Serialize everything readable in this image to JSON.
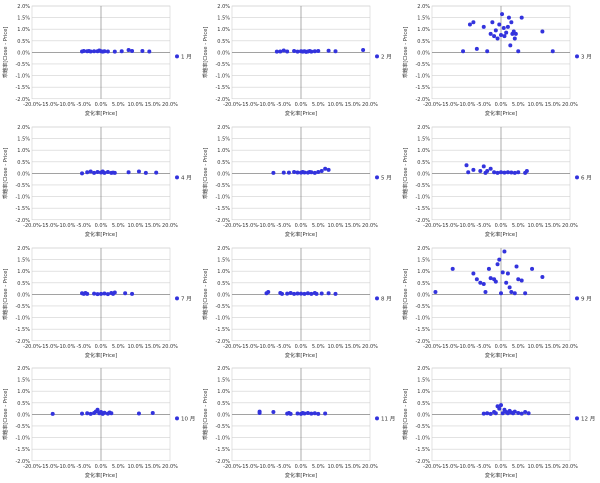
{
  "chart_data": [
    {
      "type": "scatter",
      "legend": "1 月",
      "xlabel": "変化率[Price]",
      "ylabel": "乖離率[Close - Price]",
      "xlim": [
        -20,
        20
      ],
      "ylim": [
        -2,
        2
      ],
      "points": [
        [
          -5.5,
          0.04
        ],
        [
          -5,
          0.06
        ],
        [
          -4,
          0.05
        ],
        [
          -3.5,
          0.06
        ],
        [
          -3,
          0.04
        ],
        [
          -2,
          0.05
        ],
        [
          -1,
          0.05
        ],
        [
          -0.5,
          0.08
        ],
        [
          0,
          0.05
        ],
        [
          0.5,
          0.03
        ],
        [
          1,
          0.05
        ],
        [
          2,
          0.04
        ],
        [
          4,
          0.03
        ],
        [
          6,
          0.05
        ],
        [
          8,
          0.1
        ],
        [
          9,
          0.06
        ],
        [
          12,
          0.06
        ],
        [
          14,
          0.04
        ]
      ]
    },
    {
      "type": "scatter",
      "legend": "2 月",
      "xlabel": "変化率[Price]",
      "ylabel": "乖離率[Close - Price]",
      "xlim": [
        -20,
        20
      ],
      "ylim": [
        -2,
        2
      ],
      "points": [
        [
          -7,
          0.03
        ],
        [
          -6,
          0.04
        ],
        [
          -5,
          0.08
        ],
        [
          -4,
          0.04
        ],
        [
          -2,
          0.06
        ],
        [
          -1,
          0.03
        ],
        [
          0,
          0.05
        ],
        [
          0.5,
          0.03
        ],
        [
          1,
          0.05
        ],
        [
          1.5,
          0.02
        ],
        [
          2,
          0.04
        ],
        [
          2.5,
          0.06
        ],
        [
          3,
          0.03
        ],
        [
          4,
          0.05
        ],
        [
          5,
          0.06
        ],
        [
          8,
          0.07
        ],
        [
          10,
          0.05
        ],
        [
          18,
          0.1
        ]
      ]
    },
    {
      "type": "scatter",
      "legend": "3 月",
      "xlabel": "変化率[Price]",
      "ylabel": "乖離率[Close - Price]",
      "xlim": [
        -20,
        20
      ],
      "ylim": [
        -2,
        2
      ],
      "points": [
        [
          -11,
          0.05
        ],
        [
          -9,
          1.2
        ],
        [
          -8,
          1.3
        ],
        [
          -7,
          0.15
        ],
        [
          -5,
          1.1
        ],
        [
          -4,
          0.05
        ],
        [
          -3,
          0.8
        ],
        [
          -2.5,
          1.3
        ],
        [
          -2,
          0.7
        ],
        [
          -1.5,
          0.95
        ],
        [
          -1,
          0.6
        ],
        [
          -0.5,
          1.2
        ],
        [
          0,
          0.75
        ],
        [
          0.3,
          1.65
        ],
        [
          0.8,
          1.05
        ],
        [
          1,
          0.7
        ],
        [
          1.5,
          0.85
        ],
        [
          2,
          1.1
        ],
        [
          2.3,
          1.5
        ],
        [
          2.7,
          0.3
        ],
        [
          3,
          1.3
        ],
        [
          3.3,
          0.8
        ],
        [
          3.7,
          0.9
        ],
        [
          4,
          0.6
        ],
        [
          4.3,
          0.8
        ],
        [
          5,
          0.05
        ],
        [
          6,
          1.5
        ],
        [
          12,
          0.9
        ],
        [
          15,
          0.05
        ]
      ]
    },
    {
      "type": "scatter",
      "legend": "4 月",
      "xlabel": "変化率[Price]",
      "ylabel": "乖離率[Close - Price]",
      "xlim": [
        -20,
        20
      ],
      "ylim": [
        -2,
        2
      ],
      "points": [
        [
          -5.5,
          0.0
        ],
        [
          -4,
          0.05
        ],
        [
          -3,
          0.08
        ],
        [
          -2,
          0.02
        ],
        [
          -1,
          0.06
        ],
        [
          0,
          0.04
        ],
        [
          0.5,
          0.08
        ],
        [
          1,
          0.02
        ],
        [
          2,
          0.06
        ],
        [
          3,
          0.02
        ],
        [
          3.5,
          0.03
        ],
        [
          4,
          0.02
        ],
        [
          8,
          0.05
        ],
        [
          11,
          0.08
        ],
        [
          13,
          0.02
        ],
        [
          16,
          0.03
        ]
      ]
    },
    {
      "type": "scatter",
      "legend": "5 月",
      "xlabel": "変化率[Price]",
      "ylabel": "乖離率[Close - Price]",
      "xlim": [
        -20,
        20
      ],
      "ylim": [
        -2,
        2
      ],
      "points": [
        [
          -8,
          0.02
        ],
        [
          -5,
          0.03
        ],
        [
          -3.5,
          0.03
        ],
        [
          -2,
          0.06
        ],
        [
          -1,
          0.04
        ],
        [
          0,
          0.03
        ],
        [
          0.5,
          0.06
        ],
        [
          1,
          0.04
        ],
        [
          2,
          0.03
        ],
        [
          2.5,
          0.06
        ],
        [
          3,
          0.05
        ],
        [
          4,
          0.02
        ],
        [
          5,
          0.06
        ],
        [
          6,
          0.1
        ],
        [
          7,
          0.2
        ],
        [
          8,
          0.15
        ]
      ]
    },
    {
      "type": "scatter",
      "legend": "6 月",
      "xlabel": "変化率[Price]",
      "ylabel": "乖離率[Close - Price]",
      "xlim": [
        -20,
        20
      ],
      "ylim": [
        -2,
        2
      ],
      "points": [
        [
          -10,
          0.35
        ],
        [
          -9.5,
          0.05
        ],
        [
          -8,
          0.15
        ],
        [
          -6,
          0.1
        ],
        [
          -5,
          0.3
        ],
        [
          -4.5,
          0.02
        ],
        [
          -4,
          0.1
        ],
        [
          -3,
          0.2
        ],
        [
          -2,
          0.05
        ],
        [
          -1,
          0.02
        ],
        [
          0,
          0.05
        ],
        [
          1,
          0.03
        ],
        [
          2,
          0.05
        ],
        [
          3,
          0.04
        ],
        [
          4,
          0.02
        ],
        [
          5,
          0.05
        ],
        [
          7,
          0.02
        ],
        [
          7.5,
          0.1
        ]
      ]
    },
    {
      "type": "scatter",
      "legend": "7 月",
      "xlabel": "変化率[Price]",
      "ylabel": "乖離率[Close - Price]",
      "xlim": [
        -20,
        20
      ],
      "ylim": [
        -2,
        2
      ],
      "points": [
        [
          -5.5,
          0.05
        ],
        [
          -5,
          0.02
        ],
        [
          -4.5,
          0.06
        ],
        [
          -4,
          0.02
        ],
        [
          -2,
          0.03
        ],
        [
          -1,
          0.01
        ],
        [
          0,
          0.02
        ],
        [
          1,
          0.04
        ],
        [
          2,
          0.01
        ],
        [
          3,
          0.06
        ],
        [
          3.5,
          0.02
        ],
        [
          4,
          0.08
        ],
        [
          7,
          0.05
        ],
        [
          9,
          0.02
        ]
      ]
    },
    {
      "type": "scatter",
      "legend": "8 月",
      "xlabel": "変化率[Price]",
      "ylabel": "乖離率[Close - Price]",
      "xlim": [
        -20,
        20
      ],
      "ylim": [
        -2,
        2
      ],
      "points": [
        [
          -10,
          0.05
        ],
        [
          -9.5,
          0.1
        ],
        [
          -6,
          0.06
        ],
        [
          -5.5,
          0.02
        ],
        [
          -4,
          0.03
        ],
        [
          -3,
          0.06
        ],
        [
          -2,
          0.02
        ],
        [
          -1,
          0.04
        ],
        [
          0,
          0.03
        ],
        [
          1,
          0.02
        ],
        [
          2,
          0.05
        ],
        [
          3,
          0.02
        ],
        [
          4,
          0.06
        ],
        [
          4.5,
          0.02
        ],
        [
          6,
          0.04
        ],
        [
          8,
          0.05
        ],
        [
          10,
          0.02
        ]
      ]
    },
    {
      "type": "scatter",
      "legend": "9 月",
      "xlabel": "変化率[Price]",
      "ylabel": "乖離率[Close - Price]",
      "xlim": [
        -20,
        20
      ],
      "ylim": [
        -2,
        2
      ],
      "points": [
        [
          -19,
          0.1
        ],
        [
          -14,
          1.1
        ],
        [
          -8,
          0.9
        ],
        [
          -7,
          0.65
        ],
        [
          -6,
          0.5
        ],
        [
          -5,
          0.45
        ],
        [
          -4.5,
          0.1
        ],
        [
          -3.5,
          1.1
        ],
        [
          -3,
          0.7
        ],
        [
          -2,
          0.65
        ],
        [
          -1.5,
          0.55
        ],
        [
          -1,
          1.3
        ],
        [
          -0.5,
          1.5
        ],
        [
          0,
          0.05
        ],
        [
          0.5,
          0.95
        ],
        [
          1,
          1.85
        ],
        [
          1.5,
          0.5
        ],
        [
          2,
          0.9
        ],
        [
          2.5,
          0.3
        ],
        [
          3,
          0.1
        ],
        [
          4,
          0.05
        ],
        [
          4.5,
          1.2
        ],
        [
          5,
          0.65
        ],
        [
          6,
          0.6
        ],
        [
          7,
          0.05
        ],
        [
          9,
          1.1
        ],
        [
          12,
          0.75
        ]
      ]
    },
    {
      "type": "scatter",
      "legend": "10 月",
      "xlabel": "変化率[Price]",
      "ylabel": "乖離率[Close - Price]",
      "xlim": [
        -20,
        20
      ],
      "ylim": [
        -2,
        2
      ],
      "points": [
        [
          -14,
          0.02
        ],
        [
          -5.5,
          0.03
        ],
        [
          -4,
          0.05
        ],
        [
          -3,
          0.02
        ],
        [
          -2,
          0.06
        ],
        [
          -1.5,
          0.12
        ],
        [
          -1,
          0.2
        ],
        [
          -0.5,
          0.05
        ],
        [
          0,
          0.1
        ],
        [
          0.5,
          0.02
        ],
        [
          1,
          0.07
        ],
        [
          2,
          0.03
        ],
        [
          2.5,
          0.08
        ],
        [
          3,
          0.05
        ],
        [
          11,
          0.04
        ],
        [
          15,
          0.06
        ]
      ]
    },
    {
      "type": "scatter",
      "legend": "11 月",
      "xlabel": "変化率[Price]",
      "ylabel": "乖離率[Close - Price]",
      "xlim": [
        -20,
        20
      ],
      "ylim": [
        -2,
        2
      ],
      "points": [
        [
          -12,
          0.06
        ],
        [
          -12,
          0.12
        ],
        [
          -8,
          0.1
        ],
        [
          -4,
          0.03
        ],
        [
          -3.5,
          0.06
        ],
        [
          -3,
          0.02
        ],
        [
          -1,
          0.04
        ],
        [
          0,
          0.02
        ],
        [
          0.5,
          0.06
        ],
        [
          1,
          0.04
        ],
        [
          2,
          0.06
        ],
        [
          3,
          0.03
        ],
        [
          4,
          0.05
        ],
        [
          5,
          0.02
        ],
        [
          7,
          0.04
        ]
      ]
    },
    {
      "type": "scatter",
      "legend": "12 月",
      "xlabel": "変化率[Price]",
      "ylabel": "乖離率[Close - Price]",
      "xlim": [
        -20,
        20
      ],
      "ylim": [
        -2,
        2
      ],
      "points": [
        [
          -5,
          0.03
        ],
        [
          -4,
          0.05
        ],
        [
          -3,
          0.02
        ],
        [
          -2,
          0.1
        ],
        [
          -1.5,
          0.05
        ],
        [
          -1,
          0.35
        ],
        [
          -0.5,
          0.25
        ],
        [
          0,
          0.4
        ],
        [
          0.5,
          0.05
        ],
        [
          1,
          0.2
        ],
        [
          1.5,
          0.1
        ],
        [
          2,
          0.05
        ],
        [
          2.5,
          0.15
        ],
        [
          3,
          0.08
        ],
        [
          3.5,
          0.05
        ],
        [
          4,
          0.12
        ],
        [
          5,
          0.06
        ],
        [
          6,
          0.03
        ],
        [
          7,
          0.1
        ],
        [
          8,
          0.05
        ]
      ]
    }
  ],
  "colors": {
    "marker": "#3333dd",
    "grid": "#d0d0d0",
    "axis": "#888888"
  },
  "ytick_labels": [
    "2.0%",
    "1.5%",
    "1.0%",
    "0.5%",
    "0.0%",
    "-0.5%",
    "-1.0%",
    "-1.5%",
    "-2.0%"
  ],
  "xtick_labels": [
    "-20.0%",
    "-15.0%",
    "-10.0%",
    "-5.0%",
    "0.0%",
    "5.0%",
    "10.0%",
    "15.0%",
    "20.0%"
  ]
}
